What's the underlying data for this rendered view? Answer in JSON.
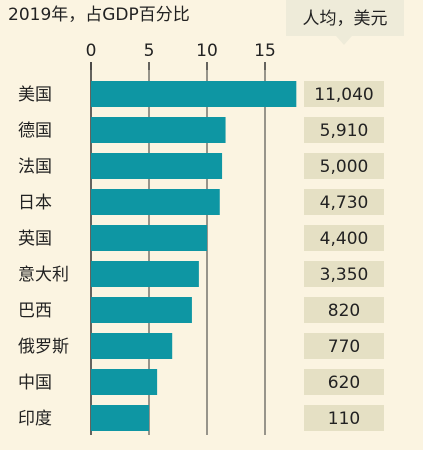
{
  "chart_data": {
    "type": "bar",
    "orientation": "horizontal",
    "title": "2019年，占GDP百分比",
    "secondary_column_header": "人均，美元",
    "categories": [
      "美国",
      "德国",
      "法国",
      "日本",
      "英国",
      "意大利",
      "巴西",
      "俄罗斯",
      "中国",
      "印度"
    ],
    "values": [
      17.7,
      11.6,
      11.3,
      11.1,
      10.0,
      9.3,
      8.7,
      7.0,
      5.7,
      5.0
    ],
    "per_capita_labels": [
      "11,040",
      "5,910",
      "5,000",
      "4,730",
      "4,400",
      "3,350",
      "820",
      "770",
      "620",
      "110"
    ],
    "xticks": [
      0,
      5,
      10,
      15
    ],
    "xlim": [
      0,
      17.7
    ],
    "grid": true,
    "colors": {
      "bar": "#0e96a3",
      "background": "#fbf4e1",
      "label_box": "#e5e0c4",
      "badge": "#eeebd9",
      "grid": "#333333"
    }
  }
}
